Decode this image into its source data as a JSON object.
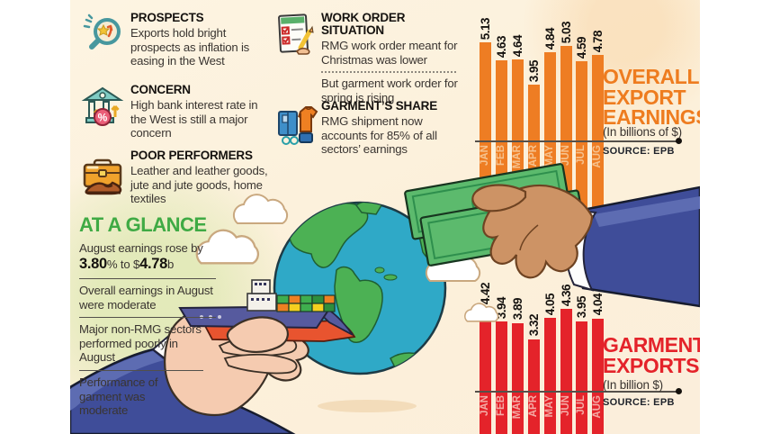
{
  "insights": [
    {
      "icon": "magnifier-icon",
      "title": "PROSPECTS",
      "body": "Exports hold bright prospects as inflation is easing in the West"
    },
    {
      "icon": "bank-icon",
      "title": "CONCERN",
      "body": "High bank interest rate in the West is still a major concern"
    },
    {
      "icon": "briefcase-shoe-icon",
      "title": "POOR PERFORMERS",
      "body": "Leather and leather goods, jute and jute goods, home textiles"
    }
  ],
  "work_order": {
    "icon": "checklist-icon",
    "title": "WORK ORDER SITUATION",
    "body1": "RMG work order meant for Christmas was lower",
    "body2": "But garment work order for spring is rising"
  },
  "garment_share": {
    "icon": "garments-icon",
    "title": "GARMENT’S SHARE",
    "body": "RMG shipment now accounts for 85% of all sectors’ earnings"
  },
  "at_a_glance": {
    "title": "AT A GLANCE",
    "item1": {
      "t1": "August earnings rose by",
      "b1": "3.80",
      "t2": "% to $",
      "b2": "4.78",
      "t3": "b"
    },
    "item2": "Overall earnings in August were moderate",
    "item3": "Major non-RMG sectors performed poorly in August",
    "item4": "Performance of garment was moderate"
  },
  "chart_data": [
    {
      "type": "bar",
      "title": "OVERALL EXPORT EARNINGS",
      "subtitle": "(In billions of $)",
      "source": "SOURCE: EPB",
      "categories": [
        "JAN",
        "FEB",
        "MAR",
        "APR",
        "MAY",
        "JUN",
        "JUL",
        "AUG"
      ],
      "values": [
        5.13,
        4.63,
        4.64,
        3.95,
        4.84,
        5.03,
        4.59,
        4.78
      ],
      "ylim": [
        3.2,
        5.2
      ],
      "bar_color": "#ee7d23",
      "title_color": "#ee7c1f",
      "value_label_color": "#15120f",
      "month_label_color": "#f6c28e",
      "bar_labels_rotated": true,
      "legend": "none",
      "grid": false
    },
    {
      "type": "bar",
      "title": "GARMENT EXPORTS",
      "subtitle": "(In billion $)",
      "source": "SOURCE: EPB",
      "categories": [
        "JAN",
        "FEB",
        "MAR",
        "APR",
        "MAY",
        "JUN",
        "JUL",
        "AUG"
      ],
      "values": [
        4.42,
        3.94,
        3.89,
        3.32,
        4.05,
        4.36,
        3.95,
        4.04
      ],
      "ylim": [
        3.0,
        4.5
      ],
      "bar_color": "#e4232a",
      "title_color": "#e4232a",
      "value_label_color": "#15120f",
      "month_label_color": "#f4aba5",
      "bar_labels_rotated": true,
      "legend": "none",
      "grid": false
    }
  ]
}
